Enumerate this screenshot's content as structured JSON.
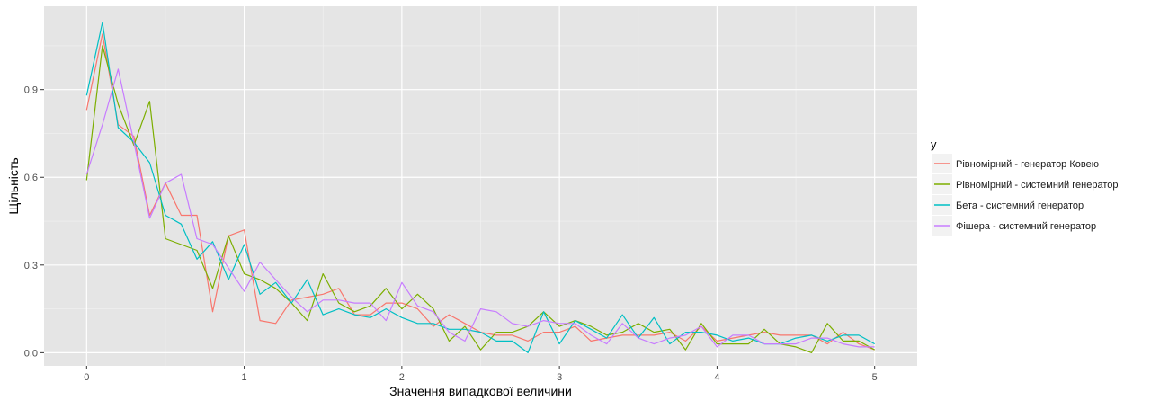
{
  "chart_data": {
    "type": "line",
    "title": "",
    "xlabel": "Значення випадкової величини",
    "ylabel": "Щільність",
    "xlim": [
      -0.27,
      5.27
    ],
    "ylim": [
      -0.045,
      1.185
    ],
    "x_ticks": [
      0,
      1,
      2,
      3,
      4,
      5
    ],
    "x_tick_labels": [
      "0",
      "1",
      "2",
      "3",
      "4",
      "5"
    ],
    "y_ticks": [
      0.0,
      0.3,
      0.6,
      0.9
    ],
    "y_tick_labels": [
      "0.0",
      "0.3",
      "0.6",
      "0.9"
    ],
    "grid": true,
    "background": "#e5e5e5",
    "legend": {
      "title": "y",
      "position": "right"
    },
    "x": [
      0.0,
      0.1,
      0.2,
      0.3,
      0.4,
      0.5,
      0.6,
      0.7,
      0.8,
      0.9,
      1.0,
      1.1,
      1.2,
      1.3,
      1.4,
      1.5,
      1.6,
      1.7,
      1.8,
      1.9,
      2.0,
      2.1,
      2.2,
      2.3,
      2.4,
      2.5,
      2.6,
      2.7,
      2.8,
      2.9,
      3.0,
      3.1,
      3.2,
      3.3,
      3.4,
      3.5,
      3.6,
      3.7,
      3.8,
      3.9,
      4.0,
      4.1,
      4.2,
      4.3,
      4.4,
      4.5,
      4.6,
      4.7,
      4.8,
      4.9,
      5.0
    ],
    "series": [
      {
        "name": "Рівномірний - генератор Ковею",
        "color": "#f8766d",
        "values": [
          0.83,
          1.09,
          0.78,
          0.74,
          0.47,
          0.58,
          0.47,
          0.47,
          0.14,
          0.4,
          0.42,
          0.11,
          0.1,
          0.18,
          0.19,
          0.2,
          0.22,
          0.13,
          0.13,
          0.17,
          0.17,
          0.15,
          0.09,
          0.13,
          0.1,
          0.07,
          0.06,
          0.06,
          0.04,
          0.07,
          0.07,
          0.09,
          0.04,
          0.05,
          0.06,
          0.06,
          0.06,
          0.07,
          0.04,
          0.09,
          0.04,
          0.05,
          0.06,
          0.07,
          0.06,
          0.06,
          0.06,
          0.03,
          0.07,
          0.03,
          0.01
        ]
      },
      {
        "name": "Рівномірний - системний генератор",
        "color": "#7cae00",
        "values": [
          0.59,
          1.05,
          0.85,
          0.71,
          0.86,
          0.39,
          0.37,
          0.35,
          0.22,
          0.4,
          0.27,
          0.25,
          0.22,
          0.17,
          0.11,
          0.27,
          0.17,
          0.14,
          0.16,
          0.22,
          0.15,
          0.2,
          0.15,
          0.04,
          0.09,
          0.01,
          0.07,
          0.07,
          0.09,
          0.14,
          0.09,
          0.11,
          0.09,
          0.06,
          0.07,
          0.1,
          0.07,
          0.08,
          0.01,
          0.1,
          0.03,
          0.03,
          0.03,
          0.08,
          0.03,
          0.02,
          0.0,
          0.1,
          0.04,
          0.04,
          0.01
        ]
      },
      {
        "name": "Бета - системний генератор",
        "color": "#00bfc4",
        "values": [
          0.88,
          1.13,
          0.77,
          0.72,
          0.65,
          0.47,
          0.44,
          0.32,
          0.38,
          0.25,
          0.37,
          0.2,
          0.24,
          0.17,
          0.25,
          0.13,
          0.15,
          0.13,
          0.12,
          0.15,
          0.12,
          0.1,
          0.1,
          0.08,
          0.08,
          0.07,
          0.04,
          0.04,
          0.0,
          0.14,
          0.03,
          0.11,
          0.08,
          0.05,
          0.13,
          0.05,
          0.12,
          0.03,
          0.07,
          0.07,
          0.06,
          0.04,
          0.05,
          0.03,
          0.03,
          0.05,
          0.06,
          0.04,
          0.06,
          0.06,
          0.03
        ]
      },
      {
        "name": "Фішера - системний генератор",
        "color": "#c77cff",
        "values": [
          0.61,
          0.78,
          0.97,
          0.72,
          0.46,
          0.58,
          0.61,
          0.39,
          0.37,
          0.29,
          0.21,
          0.31,
          0.25,
          0.19,
          0.14,
          0.18,
          0.18,
          0.17,
          0.17,
          0.11,
          0.24,
          0.16,
          0.14,
          0.07,
          0.04,
          0.15,
          0.14,
          0.1,
          0.09,
          0.11,
          0.1,
          0.1,
          0.06,
          0.03,
          0.1,
          0.05,
          0.03,
          0.05,
          0.06,
          0.09,
          0.02,
          0.06,
          0.06,
          0.03,
          0.03,
          0.03,
          0.05,
          0.05,
          0.03,
          0.02,
          0.02
        ]
      }
    ]
  }
}
